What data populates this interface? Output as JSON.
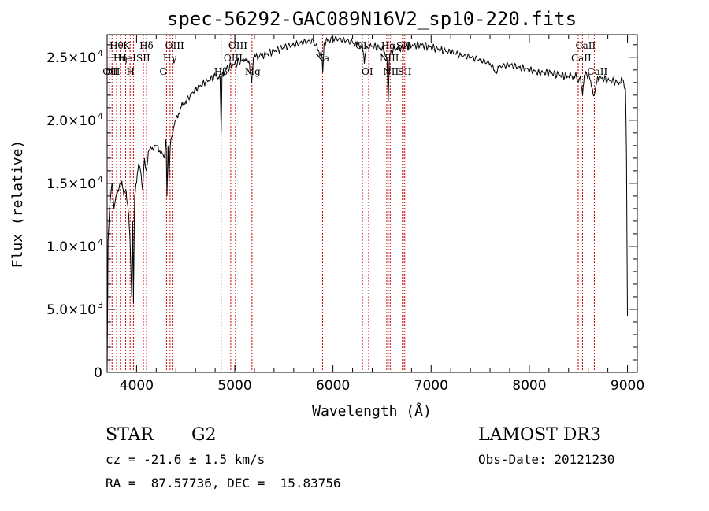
{
  "chart_data": {
    "type": "line",
    "title": "spec-56292-GAC089N16V2_sp10-220.fits",
    "xlabel": "Wavelength (Å)",
    "ylabel": "Flux (relative)",
    "xlim": [
      3700,
      9100
    ],
    "ylim": [
      0,
      26800
    ],
    "xticks": [
      4000,
      5000,
      6000,
      7000,
      8000,
      9000
    ],
    "xtick_labels": [
      "4000",
      "5000",
      "6000",
      "7000",
      "8000",
      "9000"
    ],
    "yticks": [
      0,
      5000,
      10000,
      15000,
      20000,
      25000
    ],
    "ytick_labels": [
      {
        "mantissa": "0",
        "exp": ""
      },
      {
        "mantissa": "5.0×10",
        "exp": "3"
      },
      {
        "mantissa": "1.0×10",
        "exp": "4"
      },
      {
        "mantissa": "1.5×10",
        "exp": "4"
      },
      {
        "mantissa": "2.0×10",
        "exp": "4"
      },
      {
        "mantissa": "2.5×10",
        "exp": "4"
      }
    ],
    "series": [
      {
        "name": "spectrum",
        "x": [
          3700,
          3710,
          3730,
          3750,
          3770,
          3790,
          3810,
          3830,
          3850,
          3870,
          3890,
          3905,
          3920,
          3935,
          3950,
          3960,
          3968,
          3980,
          4000,
          4020,
          4040,
          4060,
          4080,
          4100,
          4120,
          4150,
          4200,
          4250,
          4280,
          4300,
          4310,
          4320,
          4330,
          4340,
          4350,
          4380,
          4400,
          4450,
          4500,
          4600,
          4700,
          4800,
          4850,
          4861,
          4870,
          4900,
          5000,
          5100,
          5150,
          5172,
          5190,
          5300,
          5400,
          5500,
          5600,
          5700,
          5800,
          5890,
          5896,
          5910,
          6000,
          6100,
          6200,
          6250,
          6300,
          6320,
          6340,
          6400,
          6500,
          6550,
          6563,
          6575,
          6600,
          6700,
          6800,
          6900,
          7000,
          7100,
          7200,
          7300,
          7400,
          7500,
          7600,
          7650,
          7700,
          7800,
          7900,
          8000,
          8100,
          8200,
          8300,
          8400,
          8480,
          8498,
          8520,
          8542,
          8560,
          8600,
          8662,
          8700,
          8800,
          8900,
          8950,
          8980,
          8990,
          9000
        ],
        "y": [
          0,
          10500,
          13500,
          15000,
          13000,
          14000,
          14500,
          15000,
          15200,
          14000,
          14500,
          13500,
          12500,
          10000,
          6000,
          12000,
          5500,
          14000,
          15000,
          16500,
          16000,
          14500,
          17000,
          16000,
          17500,
          17800,
          18000,
          17500,
          17000,
          18500,
          14000,
          18000,
          15000,
          17500,
          18500,
          19500,
          20000,
          21000,
          21500,
          22500,
          23000,
          23500,
          23500,
          19000,
          23500,
          24000,
          24500,
          24800,
          24500,
          23000,
          25000,
          25200,
          25500,
          25800,
          26000,
          26200,
          26300,
          25000,
          23800,
          26200,
          26500,
          26400,
          26200,
          26000,
          26000,
          24500,
          25800,
          25900,
          25700,
          25000,
          21500,
          25000,
          25600,
          25800,
          25900,
          26000,
          25800,
          25600,
          25400,
          25200,
          25000,
          24800,
          24500,
          23800,
          24300,
          24400,
          24200,
          24000,
          23800,
          23800,
          23600,
          23500,
          23500,
          23000,
          23500,
          22000,
          23600,
          23600,
          22000,
          23400,
          23200,
          23000,
          23200,
          22500,
          17000,
          4500
        ]
      }
    ],
    "lines": [
      {
        "wl": 3726,
        "row": 2,
        "label": "OII"
      },
      {
        "wl": 3750,
        "row": 2,
        "label": "OII"
      },
      {
        "wl": 3797,
        "row": 0,
        "label": "Hθ"
      },
      {
        "wl": 3835,
        "row": 1,
        "label": "Hη"
      },
      {
        "wl": 3889,
        "row": 1,
        "label": "HeI"
      },
      {
        "wl": 3934,
        "row": 0,
        "label": "K"
      },
      {
        "wl": 3968,
        "row": 2,
        "label": "H"
      },
      {
        "wl": 4069,
        "row": 1,
        "label": "SII"
      },
      {
        "wl": 4102,
        "row": 0,
        "label": "Hδ"
      },
      {
        "wl": 4305,
        "row": 2,
        "label": "G"
      },
      {
        "wl": 4341,
        "row": 1,
        "label": "Hγ"
      },
      {
        "wl": 4363,
        "row": 0,
        "label": "OIII"
      },
      {
        "wl": 4861,
        "row": 2,
        "label": "Hβ"
      },
      {
        "wl": 4959,
        "row": 1,
        "label": "OIII"
      },
      {
        "wl": 5007,
        "row": 0,
        "label": "OIII"
      },
      {
        "wl": 5175,
        "row": 2,
        "label": "Mg"
      },
      {
        "wl": 5894,
        "row": 1,
        "label": "Na"
      },
      {
        "wl": 6300,
        "row": 0,
        "label": "OI"
      },
      {
        "wl": 6364,
        "row": 2,
        "label": "OI"
      },
      {
        "wl": 6548,
        "row": 1,
        "label": "NII"
      },
      {
        "wl": 6563,
        "row": 0,
        "label": "Hα"
      },
      {
        "wl": 6583,
        "row": 2,
        "label": "NII"
      },
      {
        "wl": 6707,
        "row": 1,
        "label": "Li"
      },
      {
        "wl": 6716,
        "row": 0,
        "label": "SII"
      },
      {
        "wl": 6731,
        "row": 2,
        "label": "SII"
      },
      {
        "wl": 8498,
        "row": 1,
        "label": "CaII"
      },
      {
        "wl": 8542,
        "row": 0,
        "label": "CaII"
      },
      {
        "wl": 8662,
        "row": 2,
        "label": "CaII"
      }
    ]
  },
  "info": {
    "class_type": "STAR",
    "subclass": "G2",
    "survey": "LAMOST DR3",
    "cz": "cz = -21.6 ± 1.5 km/s",
    "obs_date": "Obs-Date: 20121230",
    "coords": "RA =  87.57736, DEC =  15.83756"
  }
}
